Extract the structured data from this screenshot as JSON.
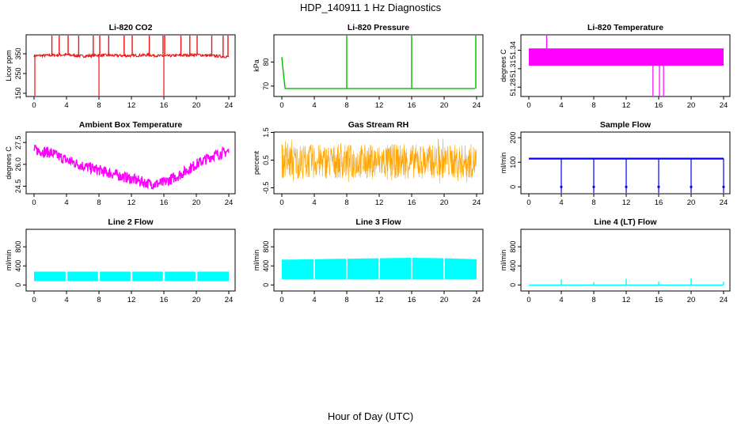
{
  "main_title": "HDP_140911  1 Hz Diagnostics",
  "x_axis_title": "Hour of Day (UTC)",
  "x_ticks": [
    "0",
    "4",
    "8",
    "12",
    "16",
    "20",
    "24"
  ],
  "colors": {
    "red": "#ee1111",
    "green": "#00bb00",
    "magenta": "#ff00ff",
    "orange": "#ffa500",
    "blue": "#0000ff",
    "cyan": "#00ffff"
  },
  "chart_data": [
    {
      "title": "Li-820 CO2",
      "type": "line",
      "ylabel": "Licor ppm",
      "yticks": [
        "150",
        "250",
        "350"
      ],
      "xlim": [
        0,
        24
      ],
      "ylim": [
        150,
        430
      ],
      "color": "#ee1111",
      "x": [
        0,
        2,
        4,
        6,
        8,
        10,
        12,
        14,
        16,
        18,
        20,
        22,
        23.8
      ],
      "y": [
        340,
        342,
        345,
        338,
        343,
        341,
        340,
        344,
        338,
        342,
        345,
        340,
        335
      ],
      "spikes_up": [
        2.2,
        3.1,
        4.2,
        5.5,
        7.3,
        8.1,
        9.2,
        11.1,
        12.1,
        14.2,
        15.9,
        16.1,
        18.1,
        19.2,
        20.1,
        21.9,
        23.3,
        23.9
      ],
      "spikes_down": [
        0.1,
        8.0,
        16.0
      ]
    },
    {
      "title": "Li-820 Pressure",
      "type": "line",
      "ylabel": "kPa",
      "yticks": [
        "70",
        "80"
      ],
      "xlim": [
        0,
        24
      ],
      "ylim": [
        67,
        90
      ],
      "color": "#00bb00",
      "x": [
        0,
        0.2,
        0.4,
        4,
        8,
        12,
        16,
        20,
        23.8
      ],
      "y": [
        82,
        75,
        69,
        69,
        69,
        69,
        69,
        69,
        69
      ],
      "spikes_up": [
        8.0,
        16.0,
        23.9
      ]
    },
    {
      "title": "Li-820 Temperature",
      "type": "area",
      "ylabel": "degrees C",
      "yticks": [
        "51.28",
        "51.31",
        "51.34"
      ],
      "xlim": [
        0,
        24
      ],
      "ylim": [
        51.27,
        51.36
      ],
      "band": [
        51.315,
        51.343
      ],
      "color": "#ff00ff",
      "spikes_up": [
        2.2
      ],
      "spikes_down": [
        15.3,
        16.1,
        16.6
      ]
    },
    {
      "title": "Ambient Box Temperature",
      "type": "line",
      "ylabel": "degrees C",
      "yticks": [
        "24.5",
        "26.0",
        "27.5"
      ],
      "xlim": [
        0,
        24
      ],
      "ylim": [
        24.2,
        28.0
      ],
      "color": "#ff00ff",
      "x": [
        0,
        2,
        4,
        6,
        8,
        10,
        12,
        14,
        15,
        16,
        18,
        20,
        22,
        24
      ],
      "y": [
        27.0,
        26.8,
        26.3,
        25.9,
        25.6,
        25.3,
        25.0,
        24.7,
        24.65,
        24.75,
        25.3,
        26.0,
        26.6,
        26.9
      ]
    },
    {
      "title": "Gas Stream RH",
      "type": "line",
      "ylabel": "percent",
      "yticks": [
        "-0.5",
        "0.5",
        "1.5"
      ],
      "xlim": [
        0,
        24
      ],
      "ylim": [
        -0.6,
        1.4
      ],
      "color": "#ffa500",
      "x": [
        0,
        24
      ],
      "y": [
        0.45,
        0.45
      ]
    },
    {
      "title": "Sample Flow",
      "type": "line",
      "ylabel": "ml/min",
      "yticks": [
        "0",
        "100",
        "200"
      ],
      "xlim": [
        0,
        24
      ],
      "ylim": [
        -15,
        210
      ],
      "color": "#0000ff",
      "x": [
        0,
        4,
        8,
        12,
        16,
        20,
        24
      ],
      "y": [
        115,
        115,
        115,
        115,
        115,
        115,
        115
      ],
      "spikes_down": [
        4.0,
        8.0,
        12.0,
        16.0,
        20.0,
        24.0
      ]
    },
    {
      "title": "Line 2 Flow",
      "type": "area",
      "ylabel": "ml/min",
      "yticks": [
        "0",
        "400",
        "800"
      ],
      "xlim": [
        0,
        24
      ],
      "ylim": [
        -60,
        1100
      ],
      "band": [
        80,
        280
      ],
      "color": "#00ffff",
      "gaps": [
        4.0,
        8.0,
        12.0,
        16.0,
        20.0
      ]
    },
    {
      "title": "Line 3 Flow",
      "type": "area",
      "ylabel": "ml/min",
      "yticks": [
        "0",
        "400",
        "800"
      ],
      "xlim": [
        0,
        24
      ],
      "ylim": [
        -60,
        1100
      ],
      "band_x": [
        0,
        4,
        8,
        12,
        16,
        20,
        24
      ],
      "band_low": [
        120,
        120,
        120,
        120,
        120,
        120,
        120
      ],
      "band_high": [
        530,
        540,
        550,
        560,
        570,
        560,
        540
      ],
      "color": "#00ffff",
      "gaps": [
        4.0,
        8.0,
        12.0,
        16.0,
        20.0
      ]
    },
    {
      "title": "Line 4 (LT) Flow",
      "type": "line",
      "ylabel": "ml/min",
      "yticks": [
        "0",
        "400",
        "800"
      ],
      "xlim": [
        0,
        24
      ],
      "ylim": [
        -60,
        1100
      ],
      "x": [
        0,
        24
      ],
      "y": [
        0,
        0
      ],
      "color": "#00ffff",
      "spikes_x": [
        4.0,
        8.0,
        12.0,
        16.0,
        20.0,
        24.0
      ],
      "spikes_y": [
        120,
        60,
        130,
        70,
        140,
        70
      ]
    }
  ]
}
